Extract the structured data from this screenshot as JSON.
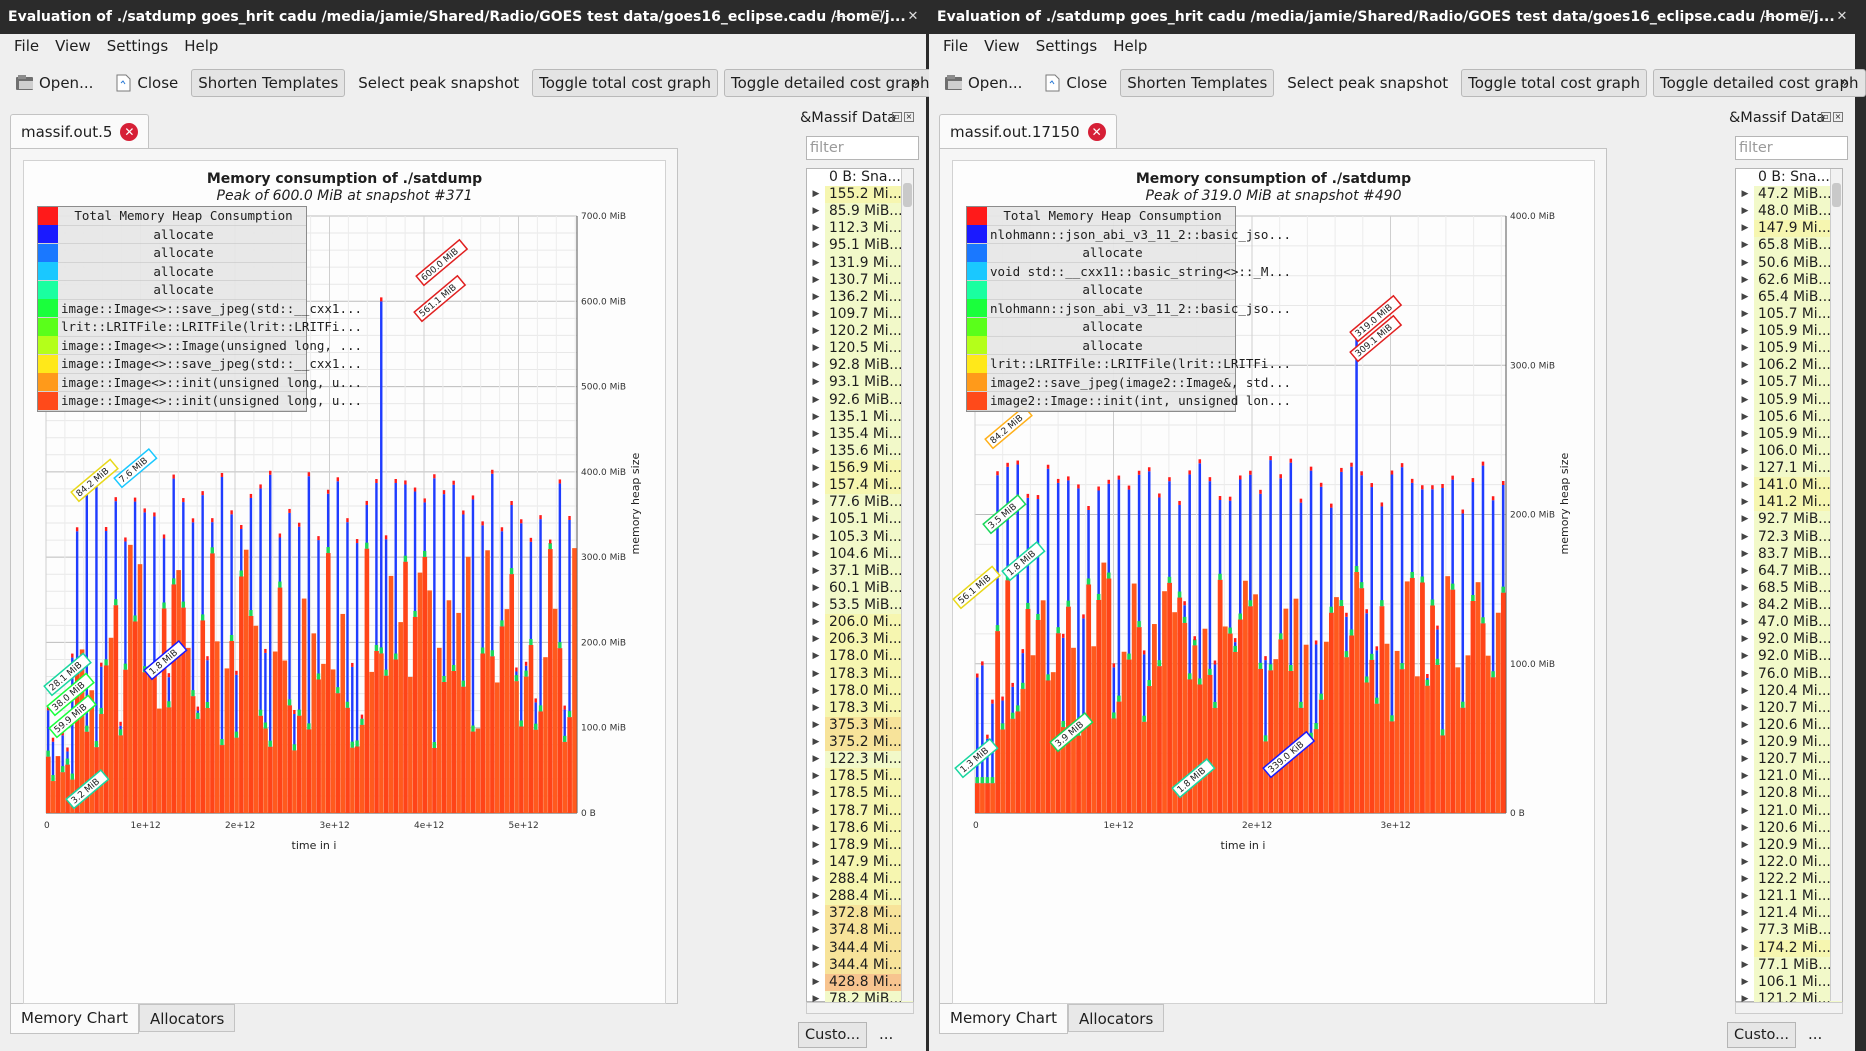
{
  "windows": [
    {
      "title": "Evaluation of ./satdump goes_hrit cadu /media/jamie/Shared/Radio/GOES test data/goes16_eclipse.cadu /home/j...",
      "menu": [
        "File",
        "View",
        "Settings",
        "Help"
      ],
      "toolbar": {
        "open": "Open...",
        "close": "Close",
        "shorten": "Shorten Templates",
        "select_peak": "Select peak snapshot",
        "toggle_total": "Toggle total cost graph",
        "toggle_detailed": "Toggle detailed cost graph",
        "more": "»"
      },
      "tab": "massif.out.5",
      "chart": {
        "title": "Memory consumption of ./satdump",
        "subtitle": "Peak of 600.0 MiB at snapshot #371",
        "ylabel": "memory heap size",
        "xlabel": "time in i",
        "legend": [
          {
            "color": "#ff1a1a",
            "label": "Total Memory Heap Consumption"
          },
          {
            "color": "#1a1aff",
            "label": "allocate"
          },
          {
            "color": "#1a78ff",
            "label": "allocate"
          },
          {
            "color": "#1ac8ff",
            "label": "allocate"
          },
          {
            "color": "#1affa0",
            "label": "allocate"
          },
          {
            "color": "#1aff3c",
            "label": "image::Image<>::save_jpeg(std::__cxx1..."
          },
          {
            "color": "#5aff1a",
            "label": "lrit::LRITFile::LRITFile(lrit::LRITFi..."
          },
          {
            "color": "#b4ff1a",
            "label": "image::Image<>::Image(unsigned long, ..."
          },
          {
            "color": "#ffe81a",
            "label": "image::Image<>::save_jpeg(std::__cxx1..."
          },
          {
            "color": "#ff9a1a",
            "label": "image::Image<>::init(unsigned long, u..."
          },
          {
            "color": "#ff4a1a",
            "label": "image::Image<>::init(unsigned long, u..."
          }
        ],
        "yticks": [
          "0 B",
          "100.0 MiB",
          "200.0 MiB",
          "300.0 MiB",
          "400.0 MiB",
          "500.0 MiB",
          "600.0 MiB",
          "700.0 MiB"
        ],
        "xticks": [
          "0",
          "1e+12",
          "2e+12",
          "3e+12",
          "4e+12",
          "5e+12"
        ],
        "annotations": [
          "600.0 MiB",
          "561.1 MiB",
          "84.2 MiB",
          "7.6 MiB",
          "1.8 MiB",
          "28.1 MiB",
          "38.0 MiB",
          "59.9 MiB",
          "3.2 MiB"
        ]
      },
      "bottom_tabs": [
        "Memory Chart",
        "Allocators"
      ],
      "side": {
        "title": "&Massif Data",
        "filter_placeholder": "filter",
        "header": "0 B: Sna...",
        "items": [
          "155.2 Mi...",
          "85.9 MiB...",
          "112.3 Mi...",
          "95.1 MiB...",
          "131.9 Mi...",
          "130.7 Mi...",
          "136.2 Mi...",
          "109.7 Mi...",
          "120.2 Mi...",
          "120.5 Mi...",
          "92.8 MiB...",
          "93.1 MiB...",
          "92.6 MiB...",
          "135.1 Mi...",
          "135.4 Mi...",
          "135.6 Mi...",
          "156.9 Mi...",
          "157.4 Mi...",
          "77.6 MiB...",
          "105.1 Mi...",
          "105.3 Mi...",
          "104.6 Mi...",
          "37.1 MiB...",
          "60.1 MiB...",
          "53.5 MiB...",
          "206.0 Mi...",
          "206.3 Mi...",
          "178.0 Mi...",
          "178.3 Mi...",
          "178.0 Mi...",
          "178.3 Mi...",
          "375.3 Mi...",
          "375.2 Mi...",
          "122.3 Mi...",
          "178.5 Mi...",
          "178.5 Mi...",
          "178.7 Mi...",
          "178.6 Mi...",
          "178.9 Mi...",
          "147.9 Mi...",
          "288.4 Mi...",
          "288.4 Mi...",
          "372.8 Mi...",
          "374.8 Mi...",
          "344.4 Mi...",
          "344.4 Mi...",
          "428.8 Mi...",
          "78.2 MiB..."
        ],
        "custo": "Custo...",
        "dots": "..."
      }
    },
    {
      "title": "Evaluation of ./satdump goes_hrit cadu /media/jamie/Shared/Radio/GOES test data/goes16_eclipse.cadu /home/j...",
      "menu": [
        "File",
        "View",
        "Settings",
        "Help"
      ],
      "toolbar": {
        "open": "Open...",
        "close": "Close",
        "shorten": "Shorten Templates",
        "select_peak": "Select peak snapshot",
        "toggle_total": "Toggle total cost graph",
        "toggle_detailed": "Toggle detailed cost graph",
        "more": "»"
      },
      "tab": "massif.out.17150",
      "chart": {
        "title": "Memory consumption of ./satdump",
        "subtitle": "Peak of 319.0 MiB at snapshot #490",
        "ylabel": "memory heap size",
        "xlabel": "time in i",
        "legend": [
          {
            "color": "#ff1a1a",
            "label": "Total Memory Heap Consumption"
          },
          {
            "color": "#1a1aff",
            "label": "nlohmann::json_abi_v3_11_2::basic_jso..."
          },
          {
            "color": "#1a78ff",
            "label": "allocate"
          },
          {
            "color": "#1ac8ff",
            "label": "void std::__cxx11::basic_string<>::_M..."
          },
          {
            "color": "#1affa0",
            "label": "allocate"
          },
          {
            "color": "#1aff3c",
            "label": "nlohmann::json_abi_v3_11_2::basic_jso..."
          },
          {
            "color": "#5aff1a",
            "label": "allocate"
          },
          {
            "color": "#b4ff1a",
            "label": "allocate"
          },
          {
            "color": "#ffe81a",
            "label": "lrit::LRITFile::LRITFile(lrit::LRITFi..."
          },
          {
            "color": "#ff9a1a",
            "label": "image2::save_jpeg(image2::Image&, std..."
          },
          {
            "color": "#ff4a1a",
            "label": "image2::Image::init(int, unsigned lon..."
          }
        ],
        "yticks": [
          "0 B",
          "100.0 MiB",
          "200.0 MiB",
          "300.0 MiB",
          "400.0 MiB"
        ],
        "xticks": [
          "0",
          "1e+12",
          "2e+12",
          "3e+12"
        ],
        "annotations": [
          "319.0 MiB",
          "309.1 MiB",
          "84.2 MiB",
          "3.5 MiB",
          "1.8 MiB",
          "56.1 MiB",
          "3.9 MiB",
          "1.3 MiB",
          "1.8 MiB",
          "339.0 KiB"
        ]
      },
      "bottom_tabs": [
        "Memory Chart",
        "Allocators"
      ],
      "side": {
        "title": "&Massif Data",
        "filter_placeholder": "filter",
        "header": "0 B: Sna...",
        "items": [
          "47.2 MiB...",
          "48.0 MiB...",
          "147.9 Mi...",
          "65.8 MiB...",
          "50.6 MiB...",
          "62.6 MiB...",
          "65.4 MiB...",
          "105.7 Mi...",
          "105.9 Mi...",
          "105.9 Mi...",
          "106.2 Mi...",
          "105.7 Mi...",
          "105.9 Mi...",
          "105.6 Mi...",
          "105.9 Mi...",
          "106.0 Mi...",
          "127.1 Mi...",
          "141.0 Mi...",
          "141.2 Mi...",
          "92.7 MiB...",
          "72.3 MiB...",
          "83.7 MiB...",
          "64.7 MiB...",
          "68.5 MiB...",
          "84.2 MiB...",
          "47.0 MiB...",
          "92.0 MiB...",
          "92.0 MiB...",
          "76.0 MiB...",
          "120.4 Mi...",
          "120.7 Mi...",
          "120.6 Mi...",
          "120.9 Mi...",
          "120.7 Mi...",
          "121.0 Mi...",
          "120.8 Mi...",
          "121.0 Mi...",
          "120.6 Mi...",
          "120.9 Mi...",
          "122.0 Mi...",
          "122.2 Mi...",
          "121.1 Mi...",
          "121.4 Mi...",
          "77.3 MiB...",
          "174.2 Mi...",
          "77.1 MiB...",
          "106.1 Mi...",
          "121.2 Mi..."
        ],
        "custo": "Custo...",
        "dots": "..."
      }
    }
  ]
}
